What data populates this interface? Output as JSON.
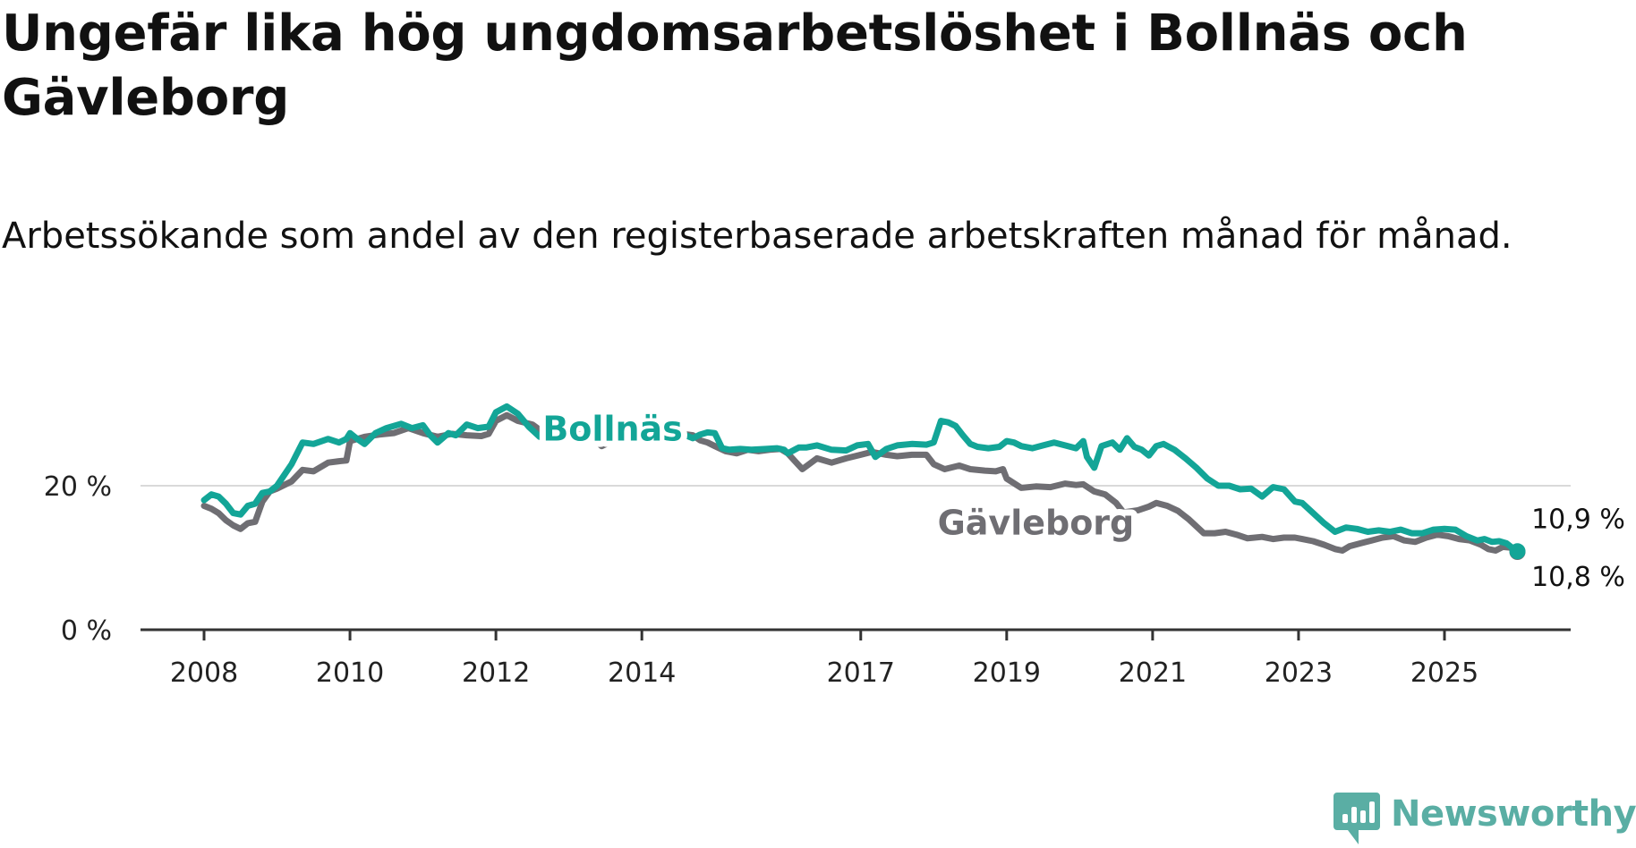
{
  "title": "Ungefär lika hög ungdomsarbetslöshet i Bollnäs och Gävleborg",
  "subtitle": "Arbetssökande som andel av den registerbaserade arbetskraften månad för månad.",
  "brand": {
    "name": "Newsworthy",
    "color": "#5aaea4"
  },
  "chart_data": {
    "type": "line",
    "title": "Ungefär lika hög ungdomsarbetslöshet i Bollnäs och Gävleborg",
    "subtitle": "Arbetssökande som andel av den registerbaserade arbetskraften månad för månad.",
    "xlabel": "",
    "ylabel": "",
    "xlim": [
      2008,
      2026.9
    ],
    "ylim": [
      0,
      30
    ],
    "x_ticks": [
      2008,
      2010,
      2012,
      2014,
      2017,
      2019,
      2021,
      2023,
      2025
    ],
    "x_tick_labels": [
      "2008",
      "2010",
      "2012",
      "2014",
      "2017",
      "2019",
      "2021",
      "2023",
      "2025"
    ],
    "y_ticks": [
      0,
      20
    ],
    "y_tick_labels": [
      "0 %",
      "20 %"
    ],
    "grid": "horizontal",
    "series": [
      {
        "name": "Gävleborg",
        "color": "#6f6e73",
        "end_label": "10,8 %",
        "points": [
          [
            2008.0,
            17.2
          ],
          [
            2008.1,
            16.8
          ],
          [
            2008.2,
            16.2
          ],
          [
            2008.3,
            15.2
          ],
          [
            2008.4,
            14.5
          ],
          [
            2008.5,
            14.0
          ],
          [
            2008.6,
            14.8
          ],
          [
            2008.7,
            15.0
          ],
          [
            2008.8,
            17.8
          ],
          [
            2008.9,
            19.2
          ],
          [
            2009.0,
            19.6
          ],
          [
            2009.2,
            20.6
          ],
          [
            2009.35,
            22.2
          ],
          [
            2009.5,
            22.0
          ],
          [
            2009.7,
            23.2
          ],
          [
            2009.85,
            23.4
          ],
          [
            2009.95,
            23.5
          ],
          [
            2010.0,
            26.2
          ],
          [
            2010.2,
            26.8
          ],
          [
            2010.4,
            27.1
          ],
          [
            2010.6,
            27.3
          ],
          [
            2010.8,
            28.0
          ],
          [
            2011.0,
            27.3
          ],
          [
            2011.2,
            26.8
          ],
          [
            2011.4,
            27.2
          ],
          [
            2011.6,
            27.0
          ],
          [
            2011.8,
            26.9
          ],
          [
            2011.9,
            27.2
          ],
          [
            2012.0,
            29.0
          ],
          [
            2012.15,
            29.8
          ],
          [
            2012.3,
            29.0
          ],
          [
            2012.5,
            28.5
          ],
          [
            2012.7,
            27.0
          ],
          [
            2012.9,
            26.5
          ],
          [
            2013.0,
            27.5
          ],
          [
            2013.1,
            27.2
          ],
          [
            2013.3,
            26.8
          ],
          [
            2013.45,
            25.5
          ],
          [
            2013.6,
            26.2
          ],
          [
            2013.8,
            26.8
          ],
          [
            2013.95,
            27.3
          ],
          [
            2014.05,
            27.5
          ],
          [
            2014.2,
            27.2
          ],
          [
            2014.4,
            27.3
          ],
          [
            2014.55,
            27.2
          ],
          [
            2014.7,
            27.0
          ],
          [
            2014.8,
            26.3
          ],
          [
            2014.9,
            26.0
          ],
          [
            2015.0,
            25.5
          ],
          [
            2015.15,
            24.8
          ],
          [
            2015.3,
            24.5
          ],
          [
            2015.45,
            25.0
          ],
          [
            2015.6,
            24.8
          ],
          [
            2015.75,
            25.0
          ],
          [
            2015.9,
            25.1
          ],
          [
            2016.0,
            24.5
          ],
          [
            2016.2,
            22.3
          ],
          [
            2016.4,
            23.8
          ],
          [
            2016.6,
            23.2
          ],
          [
            2016.8,
            23.8
          ],
          [
            2017.0,
            24.3
          ],
          [
            2017.15,
            24.7
          ],
          [
            2017.35,
            24.3
          ],
          [
            2017.5,
            24.1
          ],
          [
            2017.7,
            24.3
          ],
          [
            2017.9,
            24.3
          ],
          [
            2018.0,
            23.0
          ],
          [
            2018.15,
            22.3
          ],
          [
            2018.35,
            22.8
          ],
          [
            2018.5,
            22.3
          ],
          [
            2018.7,
            22.1
          ],
          [
            2018.85,
            22.0
          ],
          [
            2018.95,
            22.3
          ],
          [
            2019.0,
            21.0
          ],
          [
            2019.2,
            19.7
          ],
          [
            2019.4,
            19.9
          ],
          [
            2019.6,
            19.8
          ],
          [
            2019.8,
            20.3
          ],
          [
            2019.95,
            20.1
          ],
          [
            2020.05,
            20.2
          ],
          [
            2020.2,
            19.2
          ],
          [
            2020.35,
            18.8
          ],
          [
            2020.5,
            17.6
          ],
          [
            2020.6,
            16.3
          ],
          [
            2020.8,
            16.6
          ],
          [
            2020.95,
            17.1
          ],
          [
            2021.05,
            17.6
          ],
          [
            2021.2,
            17.2
          ],
          [
            2021.35,
            16.5
          ],
          [
            2021.5,
            15.3
          ],
          [
            2021.7,
            13.4
          ],
          [
            2021.85,
            13.4
          ],
          [
            2022.0,
            13.6
          ],
          [
            2022.15,
            13.2
          ],
          [
            2022.3,
            12.7
          ],
          [
            2022.5,
            12.9
          ],
          [
            2022.65,
            12.6
          ],
          [
            2022.8,
            12.8
          ],
          [
            2022.95,
            12.8
          ],
          [
            2023.05,
            12.6
          ],
          [
            2023.2,
            12.3
          ],
          [
            2023.35,
            11.8
          ],
          [
            2023.5,
            11.2
          ],
          [
            2023.6,
            11.0
          ],
          [
            2023.7,
            11.6
          ],
          [
            2023.85,
            12.0
          ],
          [
            2024.0,
            12.4
          ],
          [
            2024.15,
            12.8
          ],
          [
            2024.3,
            13.0
          ],
          [
            2024.45,
            12.4
          ],
          [
            2024.6,
            12.2
          ],
          [
            2024.75,
            12.8
          ],
          [
            2024.9,
            13.2
          ],
          [
            2025.05,
            13.0
          ],
          [
            2025.2,
            12.6
          ],
          [
            2025.35,
            12.4
          ],
          [
            2025.5,
            11.8
          ],
          [
            2025.6,
            11.2
          ],
          [
            2025.7,
            11.0
          ],
          [
            2025.8,
            11.5
          ],
          [
            2025.9,
            11.4
          ],
          [
            2026.0,
            10.8
          ]
        ]
      },
      {
        "name": "Bollnäs",
        "color": "#13a597",
        "end_label": "10,9 %",
        "points": [
          [
            2008.0,
            18.0
          ],
          [
            2008.1,
            18.8
          ],
          [
            2008.2,
            18.5
          ],
          [
            2008.3,
            17.5
          ],
          [
            2008.4,
            16.2
          ],
          [
            2008.5,
            16.0
          ],
          [
            2008.6,
            17.2
          ],
          [
            2008.7,
            17.5
          ],
          [
            2008.8,
            19.0
          ],
          [
            2008.9,
            19.2
          ],
          [
            2009.0,
            20.0
          ],
          [
            2009.2,
            23.0
          ],
          [
            2009.35,
            26.0
          ],
          [
            2009.5,
            25.8
          ],
          [
            2009.7,
            26.5
          ],
          [
            2009.85,
            26.0
          ],
          [
            2009.95,
            26.5
          ],
          [
            2010.0,
            27.3
          ],
          [
            2010.1,
            26.5
          ],
          [
            2010.2,
            25.8
          ],
          [
            2010.35,
            27.3
          ],
          [
            2010.5,
            28.0
          ],
          [
            2010.7,
            28.6
          ],
          [
            2010.85,
            28.0
          ],
          [
            2011.0,
            28.4
          ],
          [
            2011.1,
            27.0
          ],
          [
            2011.2,
            26.0
          ],
          [
            2011.35,
            27.3
          ],
          [
            2011.45,
            27.0
          ],
          [
            2011.6,
            28.5
          ],
          [
            2011.75,
            28.0
          ],
          [
            2011.9,
            28.2
          ],
          [
            2012.0,
            30.2
          ],
          [
            2012.15,
            31.0
          ],
          [
            2012.3,
            30.0
          ],
          [
            2012.45,
            28.2
          ],
          [
            2012.6,
            26.8
          ],
          [
            2012.8,
            26.2
          ],
          [
            2012.95,
            27.5
          ],
          [
            2013.1,
            28.0
          ],
          [
            2013.3,
            28.5
          ],
          [
            2013.5,
            29.7
          ],
          [
            2013.65,
            28.0
          ],
          [
            2013.8,
            28.2
          ],
          [
            2013.95,
            27.3
          ],
          [
            2014.1,
            26.5
          ],
          [
            2014.3,
            26.3
          ],
          [
            2014.45,
            26.8
          ],
          [
            2014.6,
            27.0
          ],
          [
            2014.7,
            26.6
          ],
          [
            2014.8,
            27.1
          ],
          [
            2014.9,
            27.4
          ],
          [
            2015.0,
            27.3
          ],
          [
            2015.1,
            25.2
          ],
          [
            2015.2,
            25.0
          ],
          [
            2015.35,
            25.1
          ],
          [
            2015.5,
            25.0
          ],
          [
            2015.7,
            25.1
          ],
          [
            2015.85,
            25.2
          ],
          [
            2015.95,
            25.0
          ],
          [
            2016.0,
            24.5
          ],
          [
            2016.15,
            25.3
          ],
          [
            2016.25,
            25.3
          ],
          [
            2016.4,
            25.6
          ],
          [
            2016.6,
            25.0
          ],
          [
            2016.8,
            24.9
          ],
          [
            2016.95,
            25.6
          ],
          [
            2017.1,
            25.8
          ],
          [
            2017.2,
            24.0
          ],
          [
            2017.35,
            25.1
          ],
          [
            2017.5,
            25.6
          ],
          [
            2017.7,
            25.8
          ],
          [
            2017.9,
            25.7
          ],
          [
            2018.0,
            26.0
          ],
          [
            2018.1,
            29.0
          ],
          [
            2018.2,
            28.8
          ],
          [
            2018.3,
            28.3
          ],
          [
            2018.4,
            27.0
          ],
          [
            2018.5,
            25.8
          ],
          [
            2018.6,
            25.4
          ],
          [
            2018.75,
            25.2
          ],
          [
            2018.9,
            25.4
          ],
          [
            2019.0,
            26.2
          ],
          [
            2019.1,
            26.0
          ],
          [
            2019.2,
            25.5
          ],
          [
            2019.35,
            25.2
          ],
          [
            2019.5,
            25.6
          ],
          [
            2019.65,
            26.0
          ],
          [
            2019.8,
            25.6
          ],
          [
            2019.95,
            25.2
          ],
          [
            2020.05,
            26.2
          ],
          [
            2020.1,
            24.0
          ],
          [
            2020.2,
            22.5
          ],
          [
            2020.3,
            25.5
          ],
          [
            2020.45,
            26.0
          ],
          [
            2020.55,
            25.0
          ],
          [
            2020.65,
            26.6
          ],
          [
            2020.75,
            25.4
          ],
          [
            2020.85,
            25.0
          ],
          [
            2020.95,
            24.2
          ],
          [
            2021.05,
            25.5
          ],
          [
            2021.15,
            25.8
          ],
          [
            2021.3,
            25.0
          ],
          [
            2021.45,
            23.8
          ],
          [
            2021.6,
            22.5
          ],
          [
            2021.75,
            21.0
          ],
          [
            2021.9,
            20.0
          ],
          [
            2022.05,
            20.0
          ],
          [
            2022.2,
            19.5
          ],
          [
            2022.35,
            19.6
          ],
          [
            2022.5,
            18.5
          ],
          [
            2022.65,
            19.8
          ],
          [
            2022.8,
            19.5
          ],
          [
            2022.95,
            17.8
          ],
          [
            2023.05,
            17.6
          ],
          [
            2023.2,
            16.2
          ],
          [
            2023.35,
            14.8
          ],
          [
            2023.5,
            13.6
          ],
          [
            2023.65,
            14.2
          ],
          [
            2023.8,
            14.0
          ],
          [
            2023.95,
            13.6
          ],
          [
            2024.1,
            13.8
          ],
          [
            2024.25,
            13.6
          ],
          [
            2024.4,
            13.9
          ],
          [
            2024.55,
            13.4
          ],
          [
            2024.7,
            13.4
          ],
          [
            2024.85,
            13.9
          ],
          [
            2025.0,
            14.0
          ],
          [
            2025.15,
            13.9
          ],
          [
            2025.3,
            13.0
          ],
          [
            2025.45,
            12.4
          ],
          [
            2025.55,
            12.6
          ],
          [
            2025.65,
            12.2
          ],
          [
            2025.75,
            12.3
          ],
          [
            2025.85,
            12.0
          ],
          [
            2025.95,
            11.2
          ],
          [
            2026.0,
            10.9
          ]
        ]
      }
    ],
    "annotations": [
      {
        "text": "Bollnäs",
        "series": "Bollnäs",
        "x": 2013.6,
        "y": 28.0
      },
      {
        "text": "Gävleborg",
        "series": "Gävleborg",
        "x": 2019.4,
        "y": 15.0
      }
    ]
  }
}
